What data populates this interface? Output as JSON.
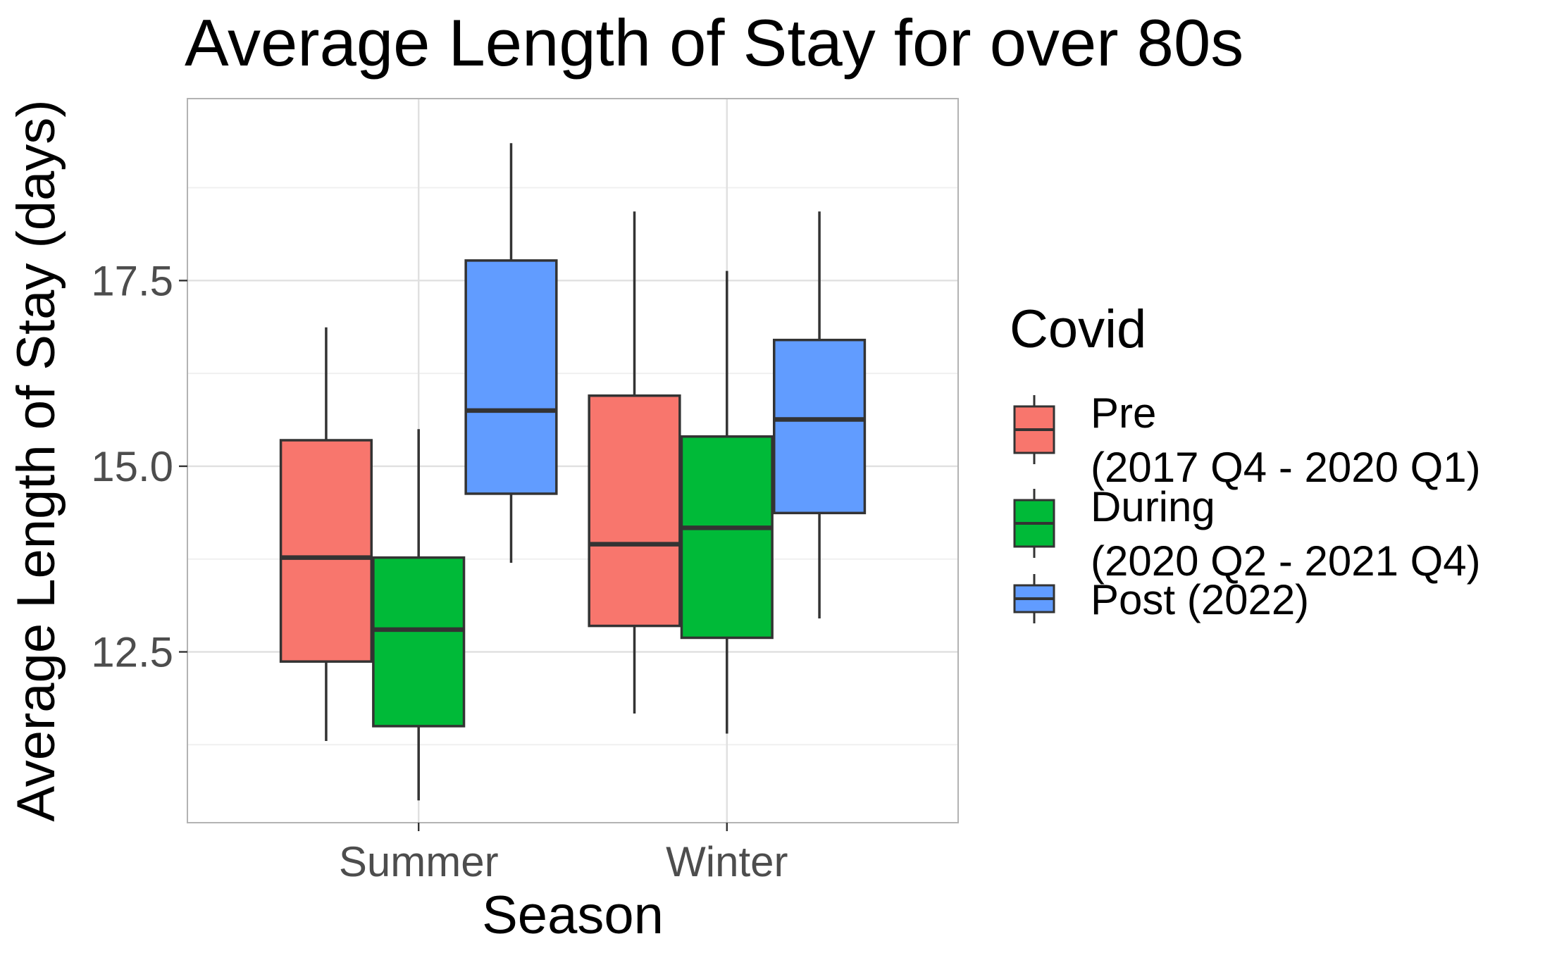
{
  "chart_data": {
    "type": "boxplot",
    "title": "Average Length of Stay for over 80s",
    "xlabel": "Season",
    "ylabel": "Average Length of Stay (days)",
    "categories": [
      "Summer",
      "Winter"
    ],
    "y_ticks": [
      12.5,
      15.0,
      17.5
    ],
    "y_tick_labels": [
      "12.5",
      "15.0",
      "17.5"
    ],
    "ylim": [
      10.2,
      19.95
    ],
    "grid": true,
    "legend": {
      "title": "Covid",
      "position": "right",
      "entries": [
        {
          "series": "pre",
          "lines": [
            "Pre",
            "(2017 Q4 - 2020 Q1)"
          ]
        },
        {
          "series": "during",
          "lines": [
            "During",
            "(2020 Q2 - 2021 Q4)"
          ]
        },
        {
          "series": "post",
          "lines": [
            "Post (2022)"
          ]
        }
      ]
    },
    "series": [
      {
        "key": "pre",
        "color": "#f8766d",
        "boxes": [
          {
            "category": "Summer",
            "whisker_low": 11.3,
            "q1": 12.37,
            "median": 13.77,
            "q3": 15.35,
            "whisker_high": 16.87
          },
          {
            "category": "Winter",
            "whisker_low": 11.67,
            "q1": 12.85,
            "median": 13.95,
            "q3": 15.95,
            "whisker_high": 18.43
          }
        ]
      },
      {
        "key": "during",
        "color": "#00ba38",
        "boxes": [
          {
            "category": "Summer",
            "whisker_low": 10.5,
            "q1": 11.5,
            "median": 12.8,
            "q3": 13.77,
            "whisker_high": 15.5
          },
          {
            "category": "Winter",
            "whisker_low": 11.4,
            "q1": 12.69,
            "median": 14.17,
            "q3": 15.4,
            "whisker_high": 17.63
          }
        ]
      },
      {
        "key": "post",
        "color": "#619cff",
        "boxes": [
          {
            "category": "Summer",
            "whisker_low": 13.7,
            "q1": 14.63,
            "median": 15.75,
            "q3": 17.77,
            "whisker_high": 19.35
          },
          {
            "category": "Winter",
            "whisker_low": 12.95,
            "q1": 14.37,
            "median": 15.63,
            "q3": 16.7,
            "whisker_high": 18.43
          }
        ]
      }
    ]
  }
}
